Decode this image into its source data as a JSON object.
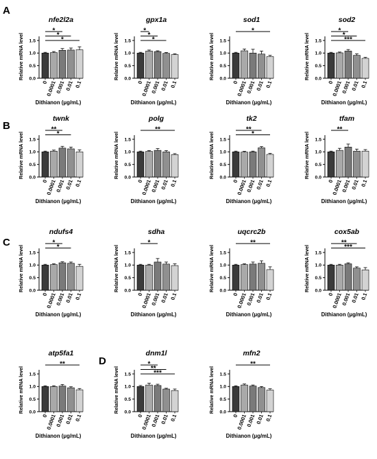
{
  "figure": {
    "panel_letters": [
      "A",
      "B",
      "C",
      "D"
    ],
    "bar_colors": [
      "#3b3b3b",
      "#a9a9a9",
      "#7a7a7a",
      "#909090",
      "#d3d3d3"
    ]
  },
  "chart_data": [
    {
      "type": "bar",
      "panel": "A",
      "title": "nfe2l2a",
      "ylabel": "Relative mRNA level",
      "xlabel": "Dithianon (μg/mL)",
      "categories": [
        "0",
        "0.0001",
        "0.001",
        "0.01",
        "0.1"
      ],
      "values": [
        1.0,
        1.02,
        1.11,
        1.12,
        1.13
      ],
      "errors": [
        0.03,
        0.04,
        0.07,
        0.08,
        0.12
      ],
      "yticks": [
        "0.0",
        "0.5",
        "1.0",
        "1.5"
      ],
      "ylim": [
        0,
        1.5
      ],
      "significance": [
        {
          "from": 0,
          "to": 2,
          "label": "*"
        },
        {
          "from": 0,
          "to": 3,
          "label": "*"
        },
        {
          "from": 0,
          "to": 4,
          "label": "*"
        }
      ]
    },
    {
      "type": "bar",
      "panel": "",
      "title": "gpx1a",
      "ylabel": "Relative mRNA level",
      "xlabel": "Dithianon (μg/mL)",
      "categories": [
        "0",
        "0.0001",
        "0.001",
        "0.01",
        "0.1"
      ],
      "values": [
        1.0,
        1.08,
        1.06,
        0.99,
        0.94
      ],
      "errors": [
        0.03,
        0.04,
        0.03,
        0.03,
        0.03
      ],
      "yticks": [
        "0.0",
        "0.5",
        "1.0",
        "1.5"
      ],
      "ylim": [
        0,
        1.5
      ],
      "significance": [
        {
          "from": 0,
          "to": 1,
          "label": "*"
        },
        {
          "from": 0,
          "to": 2,
          "label": "*"
        },
        {
          "from": 0,
          "to": 3,
          "label": "*"
        }
      ]
    },
    {
      "type": "bar",
      "panel": "",
      "title": "sod1",
      "ylabel": "Relative mRNA level",
      "xlabel": "Dithianon (μg/mL)",
      "categories": [
        "0",
        "0.0001",
        "0.001",
        "0.01",
        "0.1"
      ],
      "values": [
        1.0,
        1.09,
        1.0,
        0.96,
        0.86
      ],
      "errors": [
        0.03,
        0.07,
        0.15,
        0.12,
        0.05
      ],
      "yticks": [
        "0.0",
        "0.5",
        "1.0",
        "1.5"
      ],
      "ylim": [
        0,
        1.5
      ],
      "significance": [
        {
          "from": 0,
          "to": 4,
          "label": "*"
        }
      ]
    },
    {
      "type": "bar",
      "panel": "",
      "title": "sod2",
      "ylabel": "Relative mRNA level",
      "xlabel": "Dithianon (μg/mL)",
      "categories": [
        "0",
        "0.0001",
        "0.001",
        "0.01",
        "0.1"
      ],
      "values": [
        1.0,
        1.01,
        1.08,
        0.91,
        0.79
      ],
      "errors": [
        0.03,
        0.03,
        0.06,
        0.06,
        0.04
      ],
      "yticks": [
        "0.0",
        "0.5",
        "1.0",
        "1.5"
      ],
      "ylim": [
        0,
        1.5
      ],
      "significance": [
        {
          "from": 0,
          "to": 2,
          "label": "*"
        },
        {
          "from": 0,
          "to": 3,
          "label": "*"
        },
        {
          "from": 0,
          "to": 4,
          "label": "***"
        }
      ]
    },
    {
      "type": "bar",
      "panel": "B",
      "title": "twnk",
      "ylabel": "Relative mRNA level",
      "xlabel": "Dithianon (μg/mL)",
      "categories": [
        "0",
        "0.0001",
        "0.001",
        "0.01",
        "0.1"
      ],
      "values": [
        1.0,
        1.03,
        1.15,
        1.12,
        1.0
      ],
      "errors": [
        0.03,
        0.04,
        0.07,
        0.07,
        0.08
      ],
      "yticks": [
        "0.0",
        "0.5",
        "1.0",
        "1.5"
      ],
      "ylim": [
        0,
        1.5
      ],
      "significance": [
        {
          "from": 0,
          "to": 2,
          "label": "**"
        },
        {
          "from": 0,
          "to": 3,
          "label": "*"
        }
      ]
    },
    {
      "type": "bar",
      "panel": "",
      "title": "polg",
      "ylabel": "Relative mRNA level",
      "xlabel": "Dithianon (μg/mL)",
      "categories": [
        "0",
        "0.0001",
        "0.001",
        "0.01",
        "0.1"
      ],
      "values": [
        1.0,
        1.02,
        1.06,
        1.0,
        0.89
      ],
      "errors": [
        0.03,
        0.03,
        0.07,
        0.05,
        0.04
      ],
      "yticks": [
        "0.0",
        "0.5",
        "1.0",
        "1.5"
      ],
      "ylim": [
        0,
        1.5
      ],
      "significance": [
        {
          "from": 0,
          "to": 4,
          "label": "**"
        }
      ]
    },
    {
      "type": "bar",
      "panel": "",
      "title": "tk2",
      "ylabel": "Relative mRNA level",
      "xlabel": "Dithianon (μg/mL)",
      "categories": [
        "0",
        "0.0001",
        "0.001",
        "0.01",
        "0.1"
      ],
      "values": [
        1.0,
        0.99,
        1.0,
        1.16,
        0.9
      ],
      "errors": [
        0.03,
        0.03,
        0.03,
        0.05,
        0.04
      ],
      "yticks": [
        "0.0",
        "0.5",
        "1.0",
        "1.5"
      ],
      "ylim": [
        0,
        1.5
      ],
      "significance": [
        {
          "from": 0,
          "to": 3,
          "label": "**"
        },
        {
          "from": 0,
          "to": 4,
          "label": "*"
        }
      ]
    },
    {
      "type": "bar",
      "panel": "",
      "title": "tfam",
      "ylabel": "Relative mRNA level",
      "xlabel": "Dithianon (μg/mL)",
      "categories": [
        "0",
        "0.0001",
        "0.001",
        "0.01",
        "0.1"
      ],
      "values": [
        1.0,
        1.06,
        1.19,
        1.03,
        1.03
      ],
      "errors": [
        0.03,
        0.08,
        0.12,
        0.08,
        0.06
      ],
      "yticks": [
        "0.0",
        "0.5",
        "1.0",
        "1.5"
      ],
      "ylim": [
        0,
        1.5
      ],
      "significance": [
        {
          "from": 0,
          "to": 2,
          "label": "**"
        }
      ]
    },
    {
      "type": "bar",
      "panel": "C",
      "title": "ndufs4",
      "ylabel": "Relative mRNA level",
      "xlabel": "Dithianon (μg/mL)",
      "categories": [
        "0",
        "0.0001",
        "0.001",
        "0.01",
        "0.1"
      ],
      "values": [
        1.0,
        1.02,
        1.09,
        1.07,
        0.95
      ],
      "errors": [
        0.03,
        0.03,
        0.04,
        0.05,
        0.08
      ],
      "yticks": [
        "0.0",
        "0.5",
        "1.0",
        "1.5"
      ],
      "ylim": [
        0,
        1.5
      ],
      "significance": [
        {
          "from": 0,
          "to": 2,
          "label": "*"
        },
        {
          "from": 0,
          "to": 3,
          "label": "*"
        }
      ]
    },
    {
      "type": "bar",
      "panel": "",
      "title": "sdha",
      "ylabel": "Relative mRNA level",
      "xlabel": "Dithianon (μg/mL)",
      "categories": [
        "0",
        "0.0001",
        "0.001",
        "0.01",
        "0.1"
      ],
      "values": [
        1.0,
        1.0,
        1.12,
        1.04,
        0.98
      ],
      "errors": [
        0.03,
        0.03,
        0.14,
        0.08,
        0.07
      ],
      "yticks": [
        "0.0",
        "0.5",
        "1.0",
        "1.5"
      ],
      "ylim": [
        0,
        1.5
      ],
      "significance": [
        {
          "from": 0,
          "to": 2,
          "label": "*"
        }
      ]
    },
    {
      "type": "bar",
      "panel": "",
      "title": "uqcrc2b",
      "ylabel": "Relative mRNA level",
      "xlabel": "Dithianon (μg/mL)",
      "categories": [
        "0",
        "0.0001",
        "0.001",
        "0.01",
        "0.1"
      ],
      "values": [
        1.0,
        1.02,
        1.04,
        1.07,
        0.82
      ],
      "errors": [
        0.03,
        0.03,
        0.08,
        0.1,
        0.11
      ],
      "yticks": [
        "0.0",
        "0.5",
        "1.0",
        "1.5"
      ],
      "ylim": [
        0,
        1.5
      ],
      "significance": [
        {
          "from": 0,
          "to": 4,
          "label": "**"
        }
      ]
    },
    {
      "type": "bar",
      "panel": "",
      "title": "cox5ab",
      "ylabel": "Relative mRNA level",
      "xlabel": "Dithianon (μg/mL)",
      "categories": [
        "0",
        "0.0001",
        "0.001",
        "0.01",
        "0.1"
      ],
      "values": [
        1.0,
        1.0,
        1.05,
        0.88,
        0.81
      ],
      "errors": [
        0.03,
        0.03,
        0.04,
        0.05,
        0.09
      ],
      "yticks": [
        "0.0",
        "0.5",
        "1.0",
        "1.5"
      ],
      "ylim": [
        0,
        1.5
      ],
      "significance": [
        {
          "from": 0,
          "to": 3,
          "label": "**"
        },
        {
          "from": 0,
          "to": 4,
          "label": "***"
        }
      ]
    },
    {
      "type": "bar",
      "panel": "",
      "title": "atp5fa1",
      "ylabel": "Relative mRNA level",
      "xlabel": "Dithianon (μg/mL)",
      "categories": [
        "0",
        "0.0001",
        "0.001",
        "0.01",
        "0.1"
      ],
      "values": [
        1.0,
        1.0,
        1.02,
        0.95,
        0.87
      ],
      "errors": [
        0.03,
        0.03,
        0.06,
        0.04,
        0.05
      ],
      "yticks": [
        "0.0",
        "0.5",
        "1.0",
        "1.5"
      ],
      "ylim": [
        0,
        1.5
      ],
      "significance": [
        {
          "from": 0,
          "to": 4,
          "label": "**"
        }
      ]
    },
    {
      "type": "bar",
      "panel": "D",
      "title": "dnm1l",
      "ylabel": "Relative mRNA level",
      "xlabel": "Dithianon (μg/mL)",
      "categories": [
        "0",
        "0.0001",
        "0.001",
        "0.01",
        "0.1"
      ],
      "values": [
        1.0,
        1.06,
        1.04,
        0.9,
        0.84
      ],
      "errors": [
        0.04,
        0.07,
        0.05,
        0.03,
        0.06
      ],
      "yticks": [
        "0.0",
        "0.5",
        "1.0",
        "1.5"
      ],
      "ylim": [
        0,
        1.5
      ],
      "significance": [
        {
          "from": 0,
          "to": 2,
          "label": "*"
        },
        {
          "from": 0,
          "to": 3,
          "label": "**"
        },
        {
          "from": 0,
          "to": 4,
          "label": "***"
        }
      ]
    },
    {
      "type": "bar",
      "panel": "",
      "title": "mfn2",
      "ylabel": "Relative mRNA level",
      "xlabel": "Dithianon (μg/mL)",
      "categories": [
        "0",
        "0.0001",
        "0.001",
        "0.01",
        "0.1"
      ],
      "values": [
        1.0,
        1.06,
        1.02,
        0.96,
        0.86
      ],
      "errors": [
        0.03,
        0.04,
        0.04,
        0.04,
        0.05
      ],
      "yticks": [
        "0.0",
        "0.5",
        "1.0",
        "1.5"
      ],
      "ylim": [
        0,
        1.5
      ],
      "significance": [
        {
          "from": 0,
          "to": 4,
          "label": "**"
        }
      ]
    }
  ]
}
